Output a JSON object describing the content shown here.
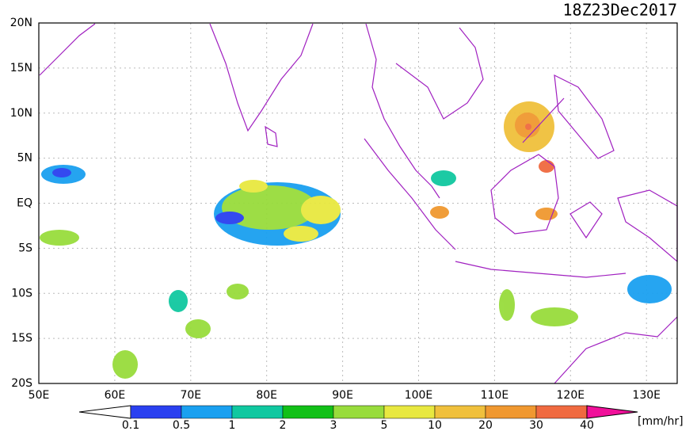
{
  "header": {
    "title": "18Z23Dec2017"
  },
  "map": {
    "lat_labels": [
      "20N",
      "15N",
      "10N",
      "5N",
      "EQ",
      "5S",
      "10S",
      "15S",
      "20S"
    ],
    "lon_labels": [
      "50E",
      "60E",
      "70E",
      "80E",
      "90E",
      "100E",
      "110E",
      "120E",
      "130E"
    ],
    "coast_color": "#a020c0"
  },
  "colorbar": {
    "labels": [
      "0.1",
      "0.5",
      "1",
      "2",
      "3",
      "5",
      "10",
      "20",
      "30",
      "40"
    ],
    "colors": [
      "#2a40f0",
      "#1aa0f0",
      "#10c8a0",
      "#12c018",
      "#98dc3c",
      "#e8e840",
      "#f0c03c",
      "#f09830",
      "#f06a40"
    ],
    "under_color": "#ffffff",
    "over_color": "#f0109a",
    "unit": "[mm/hr]"
  }
}
